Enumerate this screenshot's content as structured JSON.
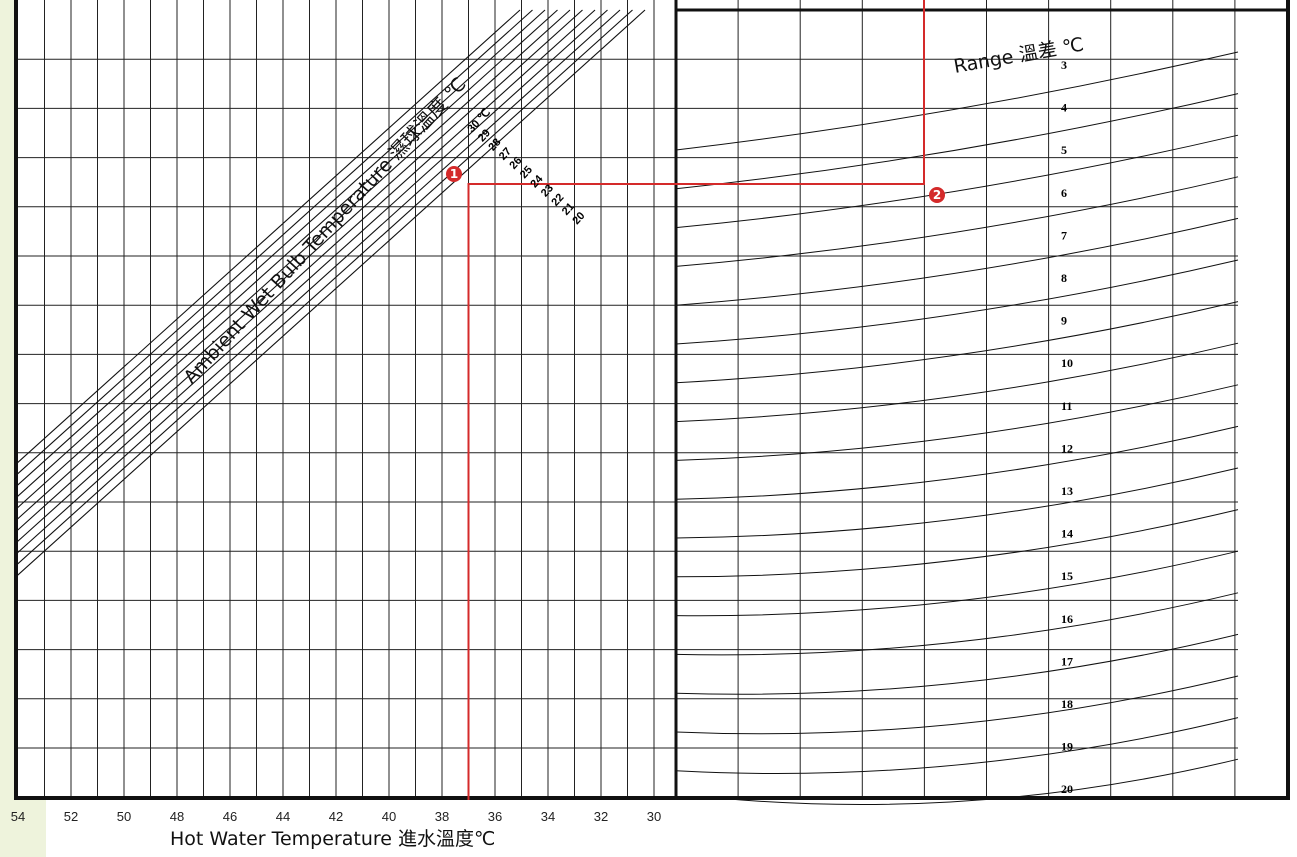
{
  "colors": {
    "sidebar": "#eef3dc",
    "grid": "#222222",
    "frame": "#111111",
    "path": "#d42a2a"
  },
  "chart_data": {
    "type": "line",
    "title": "",
    "left_panel": {
      "xlabel": "Hot Water Temperature  進水溫度℃",
      "x_ticks": [
        "54",
        "52",
        "50",
        "48",
        "46",
        "44",
        "42",
        "40",
        "38",
        "36",
        "34",
        "32",
        "30"
      ],
      "xlim": [
        54,
        30
      ],
      "curve_title": "Ambient Wet Bulb Temperature 濕球溫度 ℃",
      "wet_bulb_labels": [
        "30 ℃",
        "29",
        "28",
        "27",
        "26",
        "25",
        "24",
        "23",
        "22",
        "21",
        "20"
      ],
      "wet_bulb_values": [
        30,
        29,
        28,
        27,
        26,
        25,
        24,
        23,
        22,
        21,
        20
      ]
    },
    "right_panel": {
      "curve_title": "Range 溫差 ℃",
      "range_values": [
        3,
        4,
        5,
        6,
        7,
        8,
        9,
        10,
        11,
        12,
        13,
        14,
        15,
        16,
        17,
        18,
        19,
        20
      ],
      "range_labels": [
        "3",
        "4",
        "5",
        "6",
        "7",
        "8",
        "9",
        "10",
        "11",
        "12",
        "13",
        "14",
        "15",
        "16",
        "17",
        "18",
        "19",
        "20"
      ]
    },
    "example_path": {
      "hot_water_temperature": 37,
      "wet_bulb_temperature": 28,
      "range": 6,
      "markers": [
        "❶",
        "❷"
      ]
    },
    "grid": true
  }
}
